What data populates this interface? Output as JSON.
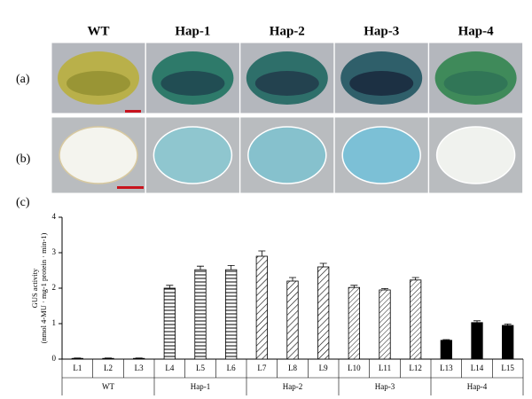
{
  "figure": {
    "column_headers": [
      "WT",
      "Hap-1",
      "Hap-2",
      "Hap-3",
      "Hap-4"
    ],
    "panel_labels": [
      "(a)",
      "(b)",
      "(c)"
    ]
  },
  "chart_data": {
    "type": "bar",
    "ylabel": [
      "GUS activity",
      "(nmol 4-MU · mg-1 protein · min-1)"
    ],
    "categories": [
      "L1",
      "L2",
      "L3",
      "L4",
      "L5",
      "L6",
      "L7",
      "L8",
      "L9",
      "L10",
      "L11",
      "L12",
      "L13",
      "L14",
      "L15"
    ],
    "groups": [
      "WT",
      "Hap-1",
      "Hap-2",
      "Hap-3",
      "Hap-4"
    ],
    "values": [
      0.02,
      0.02,
      0.02,
      2.0,
      2.52,
      2.52,
      2.9,
      2.2,
      2.6,
      2.02,
      1.95,
      2.23,
      0.53,
      1.03,
      0.95
    ],
    "errors": [
      0.01,
      0.01,
      0.01,
      0.08,
      0.1,
      0.12,
      0.15,
      0.1,
      0.1,
      0.06,
      0.04,
      0.07,
      0.02,
      0.05,
      0.04
    ],
    "ylim": [
      0,
      4
    ],
    "yticks": [
      0,
      1,
      2,
      3,
      4
    ]
  }
}
